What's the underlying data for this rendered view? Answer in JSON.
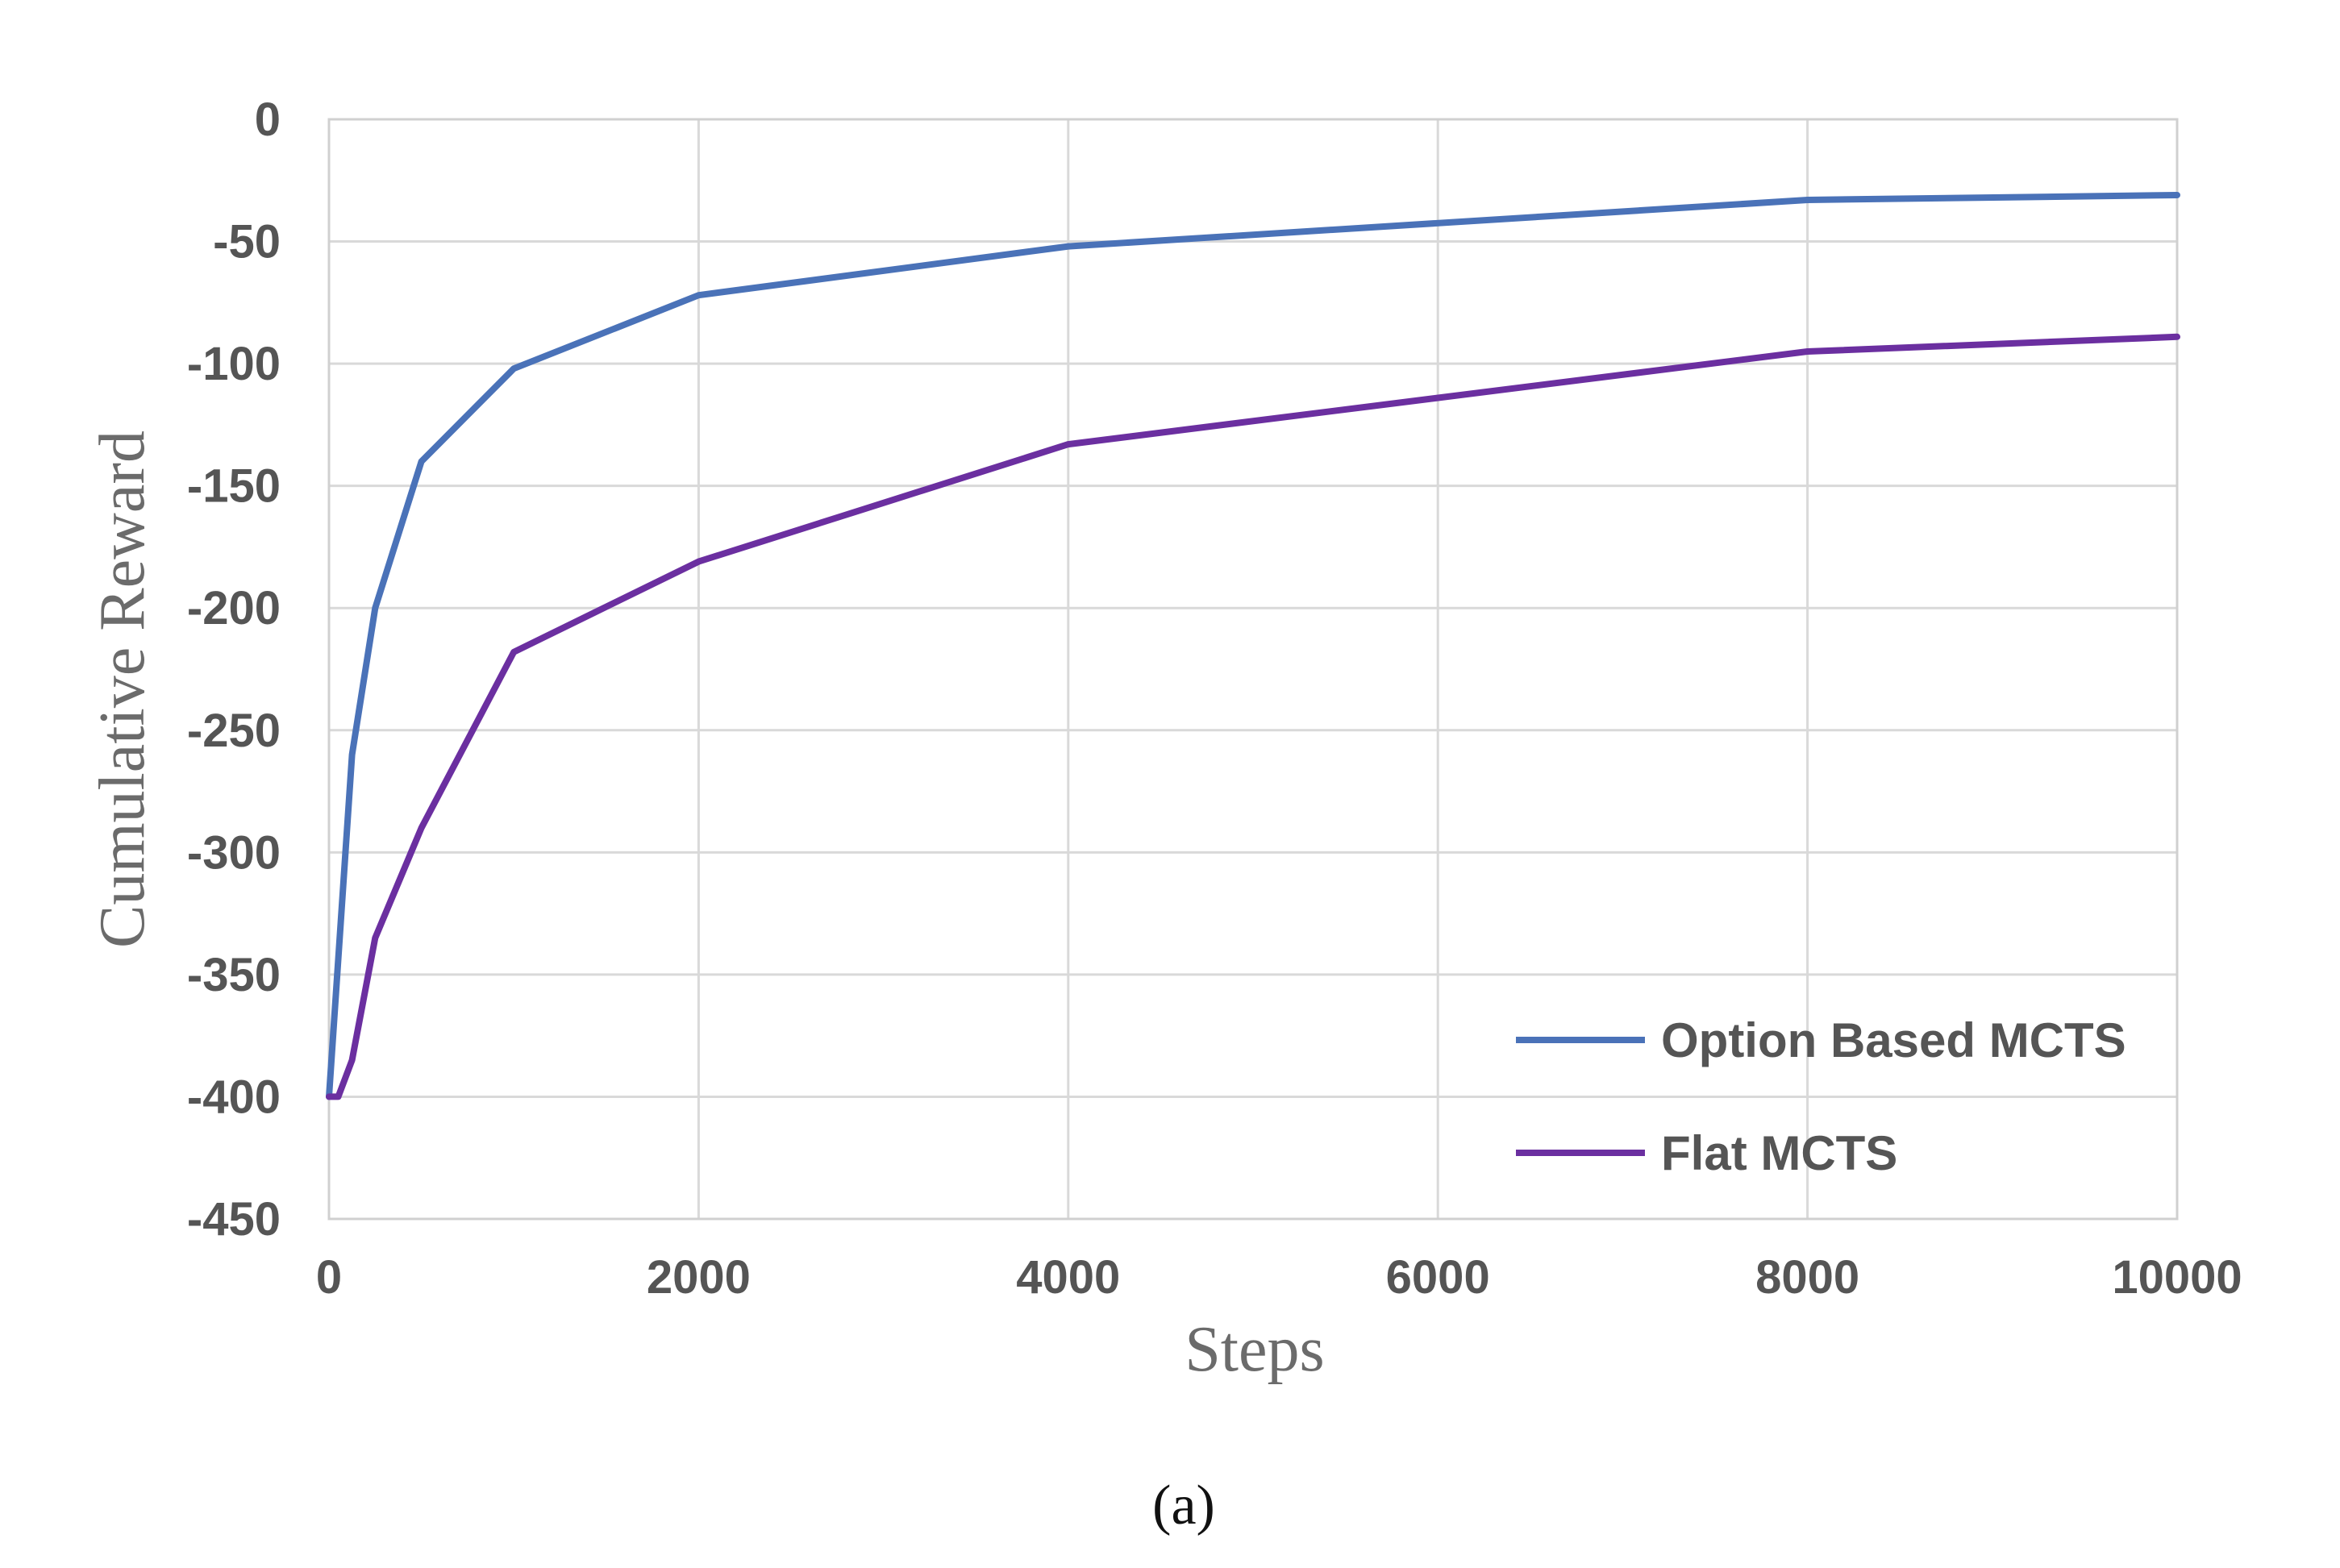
{
  "chart_data": {
    "type": "line",
    "title": "",
    "xlabel": "Steps",
    "ylabel": "Cumulative Reward",
    "xlim": [
      0,
      10000
    ],
    "ylim": [
      -450,
      0
    ],
    "x_ticks": [
      0,
      2000,
      4000,
      6000,
      8000,
      10000
    ],
    "y_ticks": [
      0,
      -50,
      -100,
      -150,
      -200,
      -250,
      -300,
      -350,
      -400,
      -450
    ],
    "grid": true,
    "legend_position": "bottom-right",
    "series": [
      {
        "name": "Option Based MCTS",
        "color": "#4a72b8",
        "x": [
          0,
          125,
          250,
          500,
          1000,
          2000,
          4000,
          8000,
          10000
        ],
        "y": [
          -400,
          -260,
          -200,
          -140,
          -102,
          -72,
          -52,
          -33,
          -31
        ]
      },
      {
        "name": "Flat MCTS",
        "color": "#6b2fa0",
        "x": [
          0,
          50,
          125,
          250,
          500,
          1000,
          2000,
          4000,
          8000,
          10000
        ],
        "y": [
          -400,
          -400,
          -385,
          -335,
          -290,
          -218,
          -181,
          -133,
          -95,
          -89
        ]
      }
    ],
    "caption": "(a)"
  }
}
